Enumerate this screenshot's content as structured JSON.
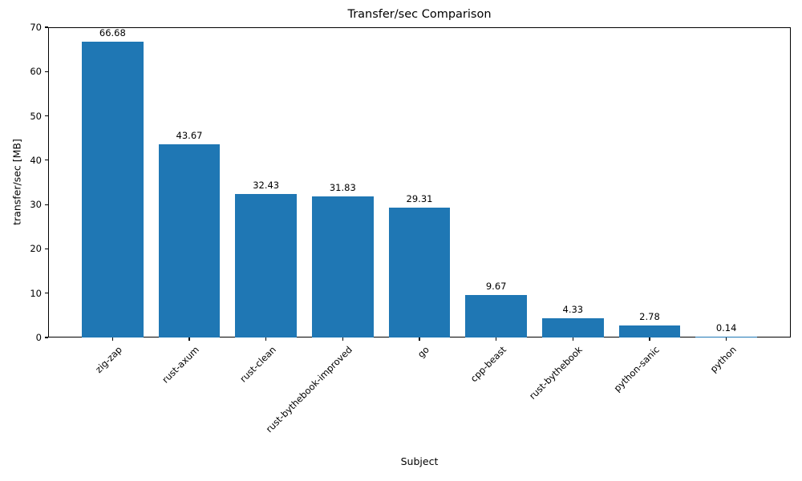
{
  "chart_data": {
    "type": "bar",
    "title": "Transfer/sec Comparison",
    "xlabel": "Subject",
    "ylabel": "transfer/sec [MB]",
    "categories": [
      "zig-zap",
      "rust-axum",
      "rust-clean",
      "rust-bythebook-improved",
      "go",
      "cpp-beast",
      "rust-bythebook",
      "python-sanic",
      "python"
    ],
    "values": [
      66.68,
      43.67,
      32.43,
      31.83,
      29.31,
      9.67,
      4.33,
      2.78,
      0.14
    ],
    "bar_value_labels": [
      "66.68",
      "43.67",
      "32.43",
      "31.83",
      "29.31",
      "9.67",
      "4.33",
      "2.78",
      "0.14"
    ],
    "yticks": [
      0,
      10,
      20,
      30,
      40,
      50,
      60,
      70
    ],
    "ytick_labels": [
      "0",
      "10",
      "20",
      "30",
      "40",
      "50",
      "60",
      "70"
    ],
    "ylim": [
      0,
      70
    ],
    "x_tick_rotation_deg": 45,
    "grid": false,
    "legend_position": "none",
    "bar_color": "#1f77b4",
    "axis_color": "#000000",
    "text_color": "#000000",
    "background_color": "#ffffff"
  }
}
